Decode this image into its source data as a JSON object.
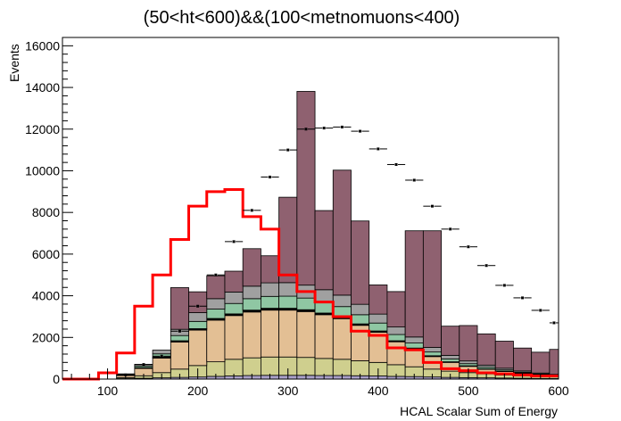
{
  "chart_data": {
    "type": "bar",
    "title": "(50<ht<600)&&(100<metnomuons<400)",
    "xlabel": "HCAL Scalar Sum of Energy",
    "ylabel": "Events",
    "xlim": [
      50,
      600
    ],
    "ylim": [
      0,
      16400
    ],
    "x_ticks": [
      "100",
      "200",
      "300",
      "400",
      "500",
      "600"
    ],
    "y_ticks": [
      "0",
      "2000",
      "4000",
      "6000",
      "8000",
      "10000",
      "12000",
      "14000",
      "16000"
    ],
    "bin_edges": [
      50,
      70,
      90,
      110,
      130,
      150,
      170,
      190,
      210,
      230,
      250,
      270,
      290,
      310,
      330,
      350,
      370,
      390,
      410,
      430,
      450,
      470,
      490,
      510,
      530,
      550,
      570,
      590,
      610
    ],
    "stack": [
      {
        "color": "#aaa0c8",
        "values": [
          0,
          0,
          0,
          20,
          40,
          60,
          80,
          100,
          130,
          150,
          170,
          180,
          180,
          180,
          170,
          170,
          160,
          150,
          130,
          120,
          100,
          80,
          70,
          60,
          50,
          40,
          30,
          25
        ]
      },
      {
        "color": "#cfcf8e",
        "values": [
          0,
          0,
          0,
          50,
          120,
          250,
          400,
          550,
          700,
          800,
          850,
          880,
          880,
          860,
          820,
          780,
          720,
          650,
          560,
          470,
          380,
          300,
          240,
          190,
          150,
          120,
          95,
          75
        ]
      },
      {
        "color": "#e3bf94",
        "values": [
          0,
          0,
          0,
          100,
          350,
          700,
          1300,
          1700,
          2000,
          2100,
          2200,
          2250,
          2250,
          2200,
          2100,
          1950,
          1700,
          1450,
          1100,
          850,
          600,
          420,
          300,
          220,
          160,
          110,
          80,
          60
        ]
      },
      {
        "color": "#000000",
        "values": [
          0,
          0,
          0,
          20,
          40,
          50,
          60,
          70,
          80,
          80,
          90,
          90,
          90,
          90,
          80,
          80,
          70,
          60,
          50,
          50,
          40,
          30,
          30,
          20,
          20,
          20,
          10,
          10
        ]
      },
      {
        "color": "#8fc7a3",
        "values": [
          0,
          0,
          0,
          30,
          80,
          150,
          250,
          350,
          450,
          500,
          550,
          570,
          580,
          560,
          540,
          500,
          440,
          380,
          300,
          240,
          180,
          140,
          100,
          80,
          60,
          40,
          30,
          20
        ]
      },
      {
        "color": "#a0a0a0",
        "values": [
          0,
          0,
          0,
          30,
          80,
          180,
          300,
          420,
          500,
          550,
          600,
          650,
          650,
          620,
          580,
          550,
          500,
          430,
          360,
          290,
          220,
          170,
          130,
          100,
          80,
          60,
          45,
          35
        ]
      },
      {
        "color": "#8f6170",
        "values": [
          0,
          0,
          0,
          0,
          0,
          0,
          2000,
          1000,
          1100,
          1000,
          1800,
          1300,
          4100,
          9300,
          3800,
          6000,
          4000,
          1400,
          1700,
          5100,
          5600,
          1400,
          1700,
          1500,
          1300,
          1100,
          1000,
          1200
        ]
      }
    ],
    "data_points": [
      0,
      0,
      0,
      200,
      700,
      1100,
      2300,
      3500,
      5000,
      6600,
      8100,
      9700,
      11000,
      12000,
      12050,
      12100,
      11900,
      11050,
      10300,
      9550,
      8300,
      7200,
      6350,
      5450,
      4500,
      3900,
      3300,
      2700
    ],
    "signal": [
      0,
      0,
      300,
      1250,
      3500,
      5000,
      6700,
      8300,
      9000,
      9100,
      7800,
      7200,
      5000,
      4200,
      3700,
      3000,
      2300,
      2100,
      1500,
      1400,
      800,
      500,
      400,
      300,
      250,
      200,
      150,
      150
    ],
    "colors": {
      "signal": "#ff0000",
      "data": "#000000",
      "frame": "#000000"
    }
  }
}
